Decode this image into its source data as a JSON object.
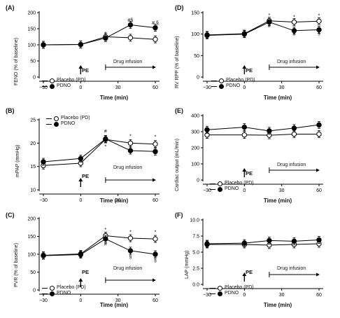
{
  "chart_data": [
    {
      "id": "A",
      "type": "line",
      "panel_label": "(A)",
      "xlabel": "Time (min)",
      "ylabel": "FENO (% of baseline)",
      "ylim": [
        0,
        200
      ],
      "yticks": [
        "0",
        "50",
        "100",
        "150",
        "200"
      ],
      "xticks": [
        "-30",
        "0",
        "30",
        "60"
      ],
      "x": [
        -30,
        0,
        20,
        40,
        60
      ],
      "series": [
        {
          "name": "Placebo (PD)",
          "marker": "open",
          "values": [
            100,
            101,
            125,
            122,
            117
          ]
        },
        {
          "name": "PDNO",
          "marker": "closed",
          "values": [
            100,
            101,
            121,
            162,
            153
          ]
        }
      ],
      "annotations": [
        {
          "x": 20,
          "y": 130,
          "text": "*"
        },
        {
          "x": 20,
          "y": 112,
          "text": "#"
        },
        {
          "x": 40,
          "y": 172,
          "text": "#§"
        },
        {
          "x": 60,
          "y": 163,
          "text": "# §"
        }
      ],
      "legend_position": "bottom-left",
      "pe_label": "PE",
      "drug_label": "Drug infusion"
    },
    {
      "id": "D",
      "type": "line",
      "panel_label": "(D)",
      "xlabel": "Time (min)",
      "ylabel": "RV RPP (% of baseline)",
      "ylim": [
        0,
        150
      ],
      "yticks": [
        "0",
        "50",
        "100",
        "150"
      ],
      "xticks": [
        "-30",
        "0",
        "30",
        "60"
      ],
      "x": [
        -30,
        0,
        20,
        40,
        60
      ],
      "series": [
        {
          "name": "Placebo (PD)",
          "marker": "open",
          "values": [
            98,
            101,
            131,
            128,
            130
          ]
        },
        {
          "name": "PDNO",
          "marker": "closed",
          "values": [
            97,
            100,
            128,
            108,
            110
          ]
        }
      ],
      "annotations": [
        {
          "x": 20,
          "y": 140,
          "text": "*"
        },
        {
          "x": 20,
          "y": 115,
          "text": "#"
        },
        {
          "x": 40,
          "y": 136,
          "text": "*"
        },
        {
          "x": 40,
          "y": 98,
          "text": "§"
        },
        {
          "x": 60,
          "y": 139,
          "text": "*"
        },
        {
          "x": 60,
          "y": 98,
          "text": "§"
        }
      ],
      "legend_position": "bottom-left",
      "pe_label": "PE",
      "drug_label": "Drug infusion"
    },
    {
      "id": "B",
      "type": "line",
      "panel_label": "(B)",
      "xlabel": "Time (min)",
      "ylabel": "mPAP (mmHg)",
      "ylim": [
        10,
        25
      ],
      "yticks": [
        "10",
        "15",
        "20",
        "25"
      ],
      "xticks": [
        "-30",
        "0",
        "30",
        "60"
      ],
      "x": [
        -30,
        0,
        20,
        40,
        60
      ],
      "series": [
        {
          "name": "Placebo (PD)",
          "marker": "open",
          "values": [
            15.2,
            15.7,
            20.8,
            20.0,
            19.8
          ]
        },
        {
          "name": "PDNO",
          "marker": "closed",
          "values": [
            16.0,
            16.7,
            20.9,
            18.4,
            18.2
          ]
        }
      ],
      "annotations": [
        {
          "x": 20,
          "y": 22.2,
          "text": "#"
        },
        {
          "x": 20,
          "y": 18.9,
          "text": "*"
        },
        {
          "x": 40,
          "y": 21.2,
          "text": "*"
        },
        {
          "x": 60,
          "y": 21.0,
          "text": "*"
        }
      ],
      "legend_position": "top-left",
      "pe_label": "PE",
      "drug_label": "Drug infusion"
    },
    {
      "id": "E",
      "type": "line",
      "panel_label": "(E)",
      "xlabel": "Time (min)",
      "ylabel": "Cardiac output (mL/min)",
      "ylim": [
        0,
        400
      ],
      "yticks": [
        "0",
        "100",
        "200",
        "300",
        "400"
      ],
      "xticks": [
        "-30",
        "0",
        "30",
        "60"
      ],
      "x": [
        -30,
        0,
        20,
        40,
        60
      ],
      "series": [
        {
          "name": "Placebo (PD)",
          "marker": "open",
          "values": [
            280,
            280,
            278,
            285,
            285
          ]
        },
        {
          "name": "PDNO",
          "marker": "closed",
          "values": [
            312,
            328,
            305,
            322,
            342
          ]
        }
      ],
      "annotations": [],
      "legend_position": "bottom-left",
      "pe_label": "PE",
      "drug_label": "Drug infusion"
    },
    {
      "id": "C",
      "type": "line",
      "panel_label": "(C)",
      "xlabel": "Time (min)",
      "ylabel": "PVR (% of baseline)",
      "ylim": [
        0,
        200
      ],
      "yticks": [
        "0",
        "50",
        "100",
        "150",
        "200"
      ],
      "xticks": [
        "-30",
        "0",
        "30",
        "60"
      ],
      "x": [
        -30,
        0,
        20,
        40,
        60
      ],
      "series": [
        {
          "name": "Placebo (PD)",
          "marker": "open",
          "values": [
            97,
            101,
            152,
            145,
            143
          ]
        },
        {
          "name": "PDNO",
          "marker": "closed",
          "values": [
            96,
            99,
            143,
            110,
            100
          ]
        }
      ],
      "annotations": [
        {
          "x": 20,
          "y": 165,
          "text": "*"
        },
        {
          "x": 20,
          "y": 125,
          "text": "#"
        },
        {
          "x": 40,
          "y": 158,
          "text": "*"
        },
        {
          "x": 40,
          "y": 88,
          "text": "§"
        },
        {
          "x": 60,
          "y": 158,
          "text": "*"
        },
        {
          "x": 60,
          "y": 78,
          "text": "§"
        }
      ],
      "legend_position": "bottom-left",
      "pe_label": "PE",
      "drug_label": "Drug infusion"
    },
    {
      "id": "F",
      "type": "line",
      "panel_label": "(F)",
      "xlabel": "Time (min)",
      "ylabel": "LAP (mmHg)",
      "ylim": [
        0,
        10
      ],
      "yticks": [
        "0.0",
        "2.5",
        "5.0",
        "7.5",
        "10.0"
      ],
      "xticks": [
        "-30",
        "0",
        "30",
        "60"
      ],
      "x": [
        -30,
        0,
        20,
        40,
        60
      ],
      "series": [
        {
          "name": "Placebo (PD)",
          "marker": "open",
          "values": [
            6.2,
            6.2,
            6.1,
            6.2,
            6.3
          ]
        },
        {
          "name": "PDNO",
          "marker": "closed",
          "values": [
            6.3,
            6.4,
            6.8,
            6.7,
            6.9
          ]
        }
      ],
      "annotations": [],
      "legend_position": "bottom-left",
      "pe_label": "PE",
      "drug_label": "Drug infusion"
    }
  ]
}
